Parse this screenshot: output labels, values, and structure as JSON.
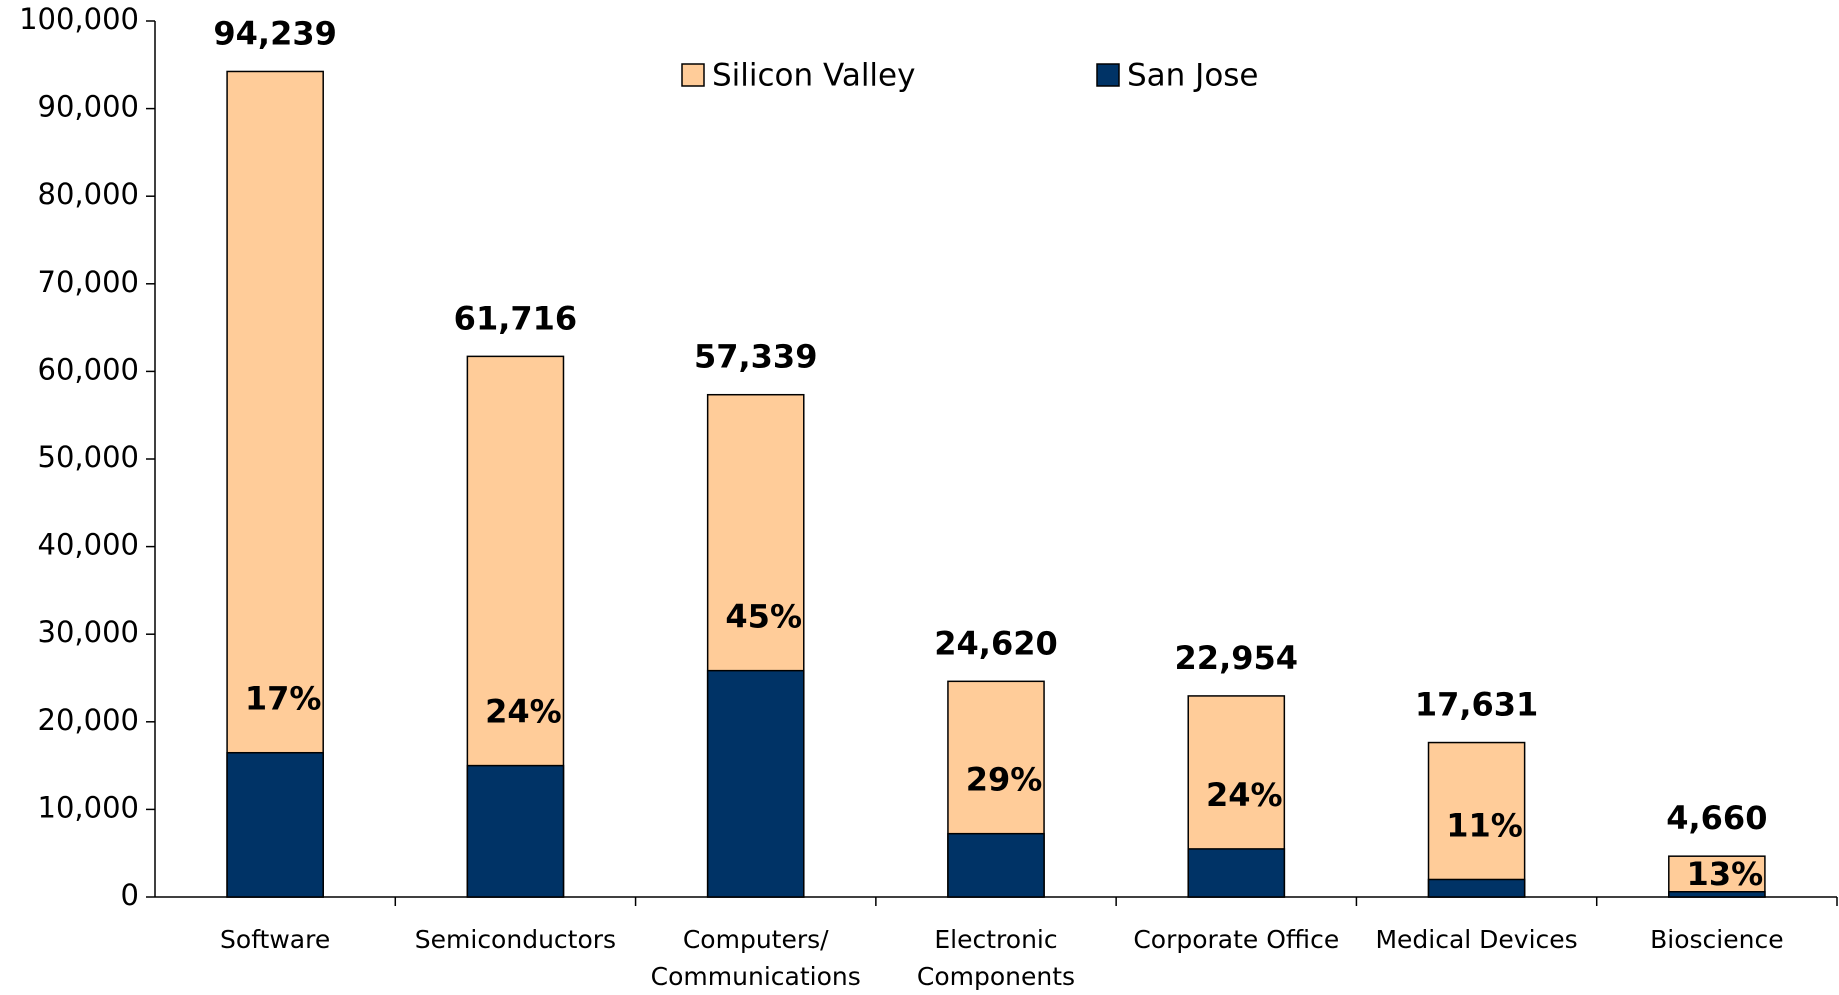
{
  "chart_data": {
    "type": "overlap-bar",
    "categories": [
      [
        "Software"
      ],
      [
        "Semiconductors"
      ],
      [
        "Computers/",
        "Communications"
      ],
      [
        "Electronic",
        "Components"
      ],
      [
        "Corporate Office"
      ],
      [
        "Medical Devices"
      ],
      [
        "Bioscience"
      ]
    ],
    "series": [
      {
        "name": "Silicon Valley",
        "color": "#ffcc99",
        "values": [
          94239,
          61716,
          57339,
          24620,
          22954,
          17631,
          4660
        ],
        "value_labels": [
          "94,239",
          "61,716",
          "57,339",
          "24,620",
          "22,954",
          "17,631",
          "4,660"
        ]
      },
      {
        "name": "San Jose",
        "color": "#003366",
        "values": [
          16470,
          15000,
          25840,
          7230,
          5490,
          2000,
          600
        ],
        "share_labels": [
          "17%",
          "24%",
          "45%",
          "29%",
          "24%",
          "11%",
          "13%"
        ]
      }
    ],
    "ylim": [
      0,
      100000
    ],
    "yticks": [
      0,
      {
        "value": 10000,
        "label": "10,000"
      },
      {
        "value": 20000,
        "label": "20,000"
      },
      {
        "value": 30000,
        "label": "30,000"
      },
      {
        "value": 40000,
        "label": "40,000"
      },
      {
        "value": 50000,
        "label": "50,000"
      },
      {
        "value": 60000,
        "label": "60,000"
      },
      {
        "value": 70000,
        "label": "70,000"
      },
      {
        "value": 80000,
        "label": "80,000"
      },
      {
        "value": 90000,
        "label": "90,000"
      },
      {
        "value": 100000,
        "label": "100,000"
      }
    ],
    "legend": "top"
  }
}
